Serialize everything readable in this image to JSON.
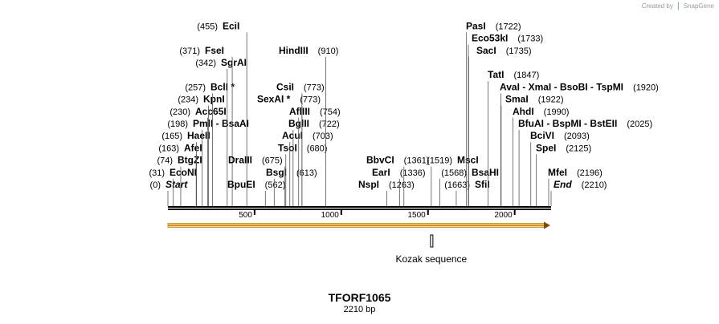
{
  "credit": {
    "prefix": "Created by",
    "brand": "SnapGene"
  },
  "plasmid": {
    "name": "TFORF1065",
    "size_label": "2210 bp",
    "length": 2210
  },
  "ruler_ticks": [
    {
      "pos": 500,
      "label": "500"
    },
    {
      "pos": 1000,
      "label": "1000"
    },
    {
      "pos": 1500,
      "label": "1500"
    },
    {
      "pos": 2000,
      "label": "2000"
    }
  ],
  "orf": {
    "start": 0,
    "end": 2210
  },
  "feature": {
    "pos": 1519,
    "label": "Kozak sequence"
  },
  "sites": [
    {
      "pos": 0,
      "num": "(0)",
      "name": "Start",
      "italic": true,
      "side": "left"
    },
    {
      "pos": 31,
      "num": "(31)",
      "name": "EcoNI",
      "side": "left"
    },
    {
      "pos": 74,
      "num": "(74)",
      "name": "BtgZI",
      "side": "left"
    },
    {
      "pos": 163,
      "num": "(163)",
      "name": "AfeI",
      "side": "left"
    },
    {
      "pos": 165,
      "num": "(165)",
      "name": "HaeII",
      "side": "left"
    },
    {
      "pos": 198,
      "num": "(198)",
      "name": "PmlI  -  BsaAI",
      "side": "left"
    },
    {
      "pos": 230,
      "num": "(230)",
      "name": "Acc65I",
      "side": "left"
    },
    {
      "pos": 234,
      "num": "(234)",
      "name": "KpnI",
      "side": "left"
    },
    {
      "pos": 257,
      "num": "(257)",
      "name": "BclI *",
      "side": "left"
    },
    {
      "pos": 342,
      "num": "(342)",
      "name": "SgrAI",
      "side": "left"
    },
    {
      "pos": 371,
      "num": "(371)",
      "name": "FseI",
      "side": "left"
    },
    {
      "pos": 455,
      "num": "(455)",
      "name": "EciI",
      "side": "left"
    },
    {
      "pos": 562,
      "num": "(562)",
      "name": "BpuEI",
      "side": "right"
    },
    {
      "pos": 613,
      "num": "(613)",
      "name": "BsgI",
      "side": "right"
    },
    {
      "pos": 675,
      "num": "(675)",
      "name": "DraIII",
      "side": "right"
    },
    {
      "pos": 680,
      "num": "(680)",
      "name": "TsoI",
      "side": "right"
    },
    {
      "pos": 703,
      "num": "(703)",
      "name": "AcuI",
      "side": "right"
    },
    {
      "pos": 722,
      "num": "(722)",
      "name": "BglII",
      "side": "right"
    },
    {
      "pos": 754,
      "num": "(754)",
      "name": "AflIII",
      "side": "right"
    },
    {
      "pos": 773,
      "num": "(773)",
      "name": "SexAI *",
      "side": "right"
    },
    {
      "pos": 773,
      "num": "(773)",
      "name": "CsiI",
      "side": "right"
    },
    {
      "pos": 910,
      "num": "(910)",
      "name": "HindIII",
      "side": "right"
    },
    {
      "pos": 1263,
      "num": "(1263)",
      "name": "NspI",
      "side": "right"
    },
    {
      "pos": 1336,
      "num": "(1336)",
      "name": "EarI",
      "side": "right"
    },
    {
      "pos": 1361,
      "num": "(1361)",
      "name": "BbvCI",
      "side": "right"
    },
    {
      "pos": 1519,
      "num": "(1519)",
      "name": "MscI",
      "side": "left"
    },
    {
      "pos": 1568,
      "num": "(1568)",
      "name": "BsaHI",
      "side": "left"
    },
    {
      "pos": 1663,
      "num": "(1663)",
      "name": "SfiI",
      "side": "left"
    },
    {
      "pos": 1722,
      "num": "(1722)",
      "name": "PasI",
      "side": "right"
    },
    {
      "pos": 1733,
      "num": "(1733)",
      "name": "Eco53kI",
      "side": "right"
    },
    {
      "pos": 1735,
      "num": "(1735)",
      "name": "SacI",
      "side": "right"
    },
    {
      "pos": 1847,
      "num": "(1847)",
      "name": "TatI",
      "side": "right"
    },
    {
      "pos": 1920,
      "num": "(1920)",
      "name": "AvaI  -  XmaI  -  BsoBI  -  TspMI",
      "side": "right"
    },
    {
      "pos": 1922,
      "num": "(1922)",
      "name": "SmaI",
      "side": "right"
    },
    {
      "pos": 1990,
      "num": "(1990)",
      "name": "AhdI",
      "side": "right"
    },
    {
      "pos": 2025,
      "num": "(2025)",
      "name": "BfuAI  -  BspMI  -  BstEII",
      "side": "right"
    },
    {
      "pos": 2093,
      "num": "(2093)",
      "name": "BciVI",
      "side": "right"
    },
    {
      "pos": 2125,
      "num": "(2125)",
      "name": "SpeI",
      "side": "right"
    },
    {
      "pos": 2196,
      "num": "(2196)",
      "name": "MfeI",
      "side": "right"
    },
    {
      "pos": 2210,
      "num": "(2210)",
      "name": "End",
      "italic": true,
      "side": "right"
    }
  ]
}
